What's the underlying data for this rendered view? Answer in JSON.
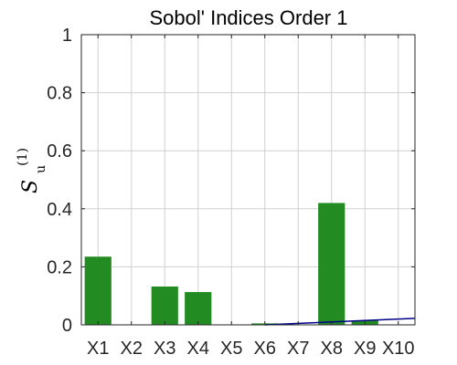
{
  "chart_data": {
    "type": "bar",
    "title": "Sobol' Indices Order 1",
    "ylabel": {
      "base": "S",
      "sub": "u",
      "sup": "(1)"
    },
    "xlabel": "",
    "categories": [
      "X1",
      "X2",
      "X3",
      "X4",
      "X5",
      "X6",
      "X7",
      "X8",
      "X9",
      "X10"
    ],
    "values": [
      0.235,
      0.0,
      0.132,
      0.113,
      0.0,
      0.005,
      0.0,
      0.42,
      0.015,
      0.0
    ],
    "ylim": [
      0,
      1
    ],
    "yticks": [
      0,
      0.2,
      0.4,
      0.6,
      0.8,
      1
    ],
    "ytick_labels": [
      "0",
      "0.2",
      "0.4",
      "0.6",
      "0.8",
      "1"
    ],
    "grid": true,
    "trend_line": {
      "x": [
        6,
        11
      ],
      "y": [
        0.0,
        0.025
      ]
    },
    "colors": {
      "bar": "#228B22",
      "line": "#00008B",
      "grid": "#d0d0d0",
      "axis": "#262626"
    }
  }
}
